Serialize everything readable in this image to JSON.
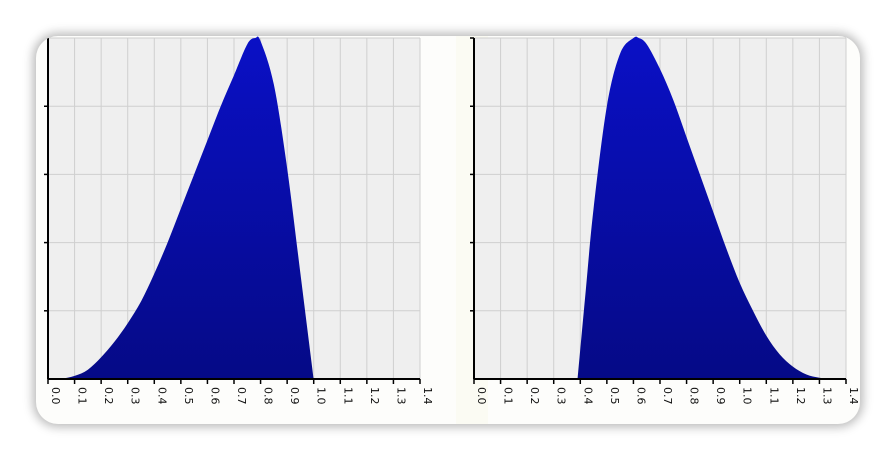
{
  "colors": {
    "fill": "#0a10c6",
    "fill_dark": "#050a86",
    "plot_bg": "#efefef",
    "grid": "#cfcfcf",
    "axis": "#000000"
  },
  "chart_data": [
    {
      "type": "area",
      "title": "",
      "xlabel": "",
      "ylabel": "",
      "xlim": [
        0,
        1.4
      ],
      "ylim": [
        0,
        1.1
      ],
      "grid": true,
      "x_ticks": [
        "0.0",
        "0.1",
        "0.2",
        "0.3",
        "0.4",
        "0.5",
        "0.6",
        "0.7",
        "0.8",
        "0.9",
        "1.0",
        "1.1",
        "1.2",
        "1.3",
        "1.4"
      ],
      "series": [
        {
          "x": [
            0.0,
            0.05,
            0.1,
            0.15,
            0.2,
            0.25,
            0.3,
            0.35,
            0.4,
            0.45,
            0.5,
            0.55,
            0.6,
            0.65,
            0.7,
            0.75,
            0.78,
            0.8,
            0.85,
            0.9,
            0.95,
            1.0
          ],
          "values": [
            0,
            0.001,
            0.01,
            0.03,
            0.07,
            0.12,
            0.18,
            0.25,
            0.34,
            0.44,
            0.55,
            0.66,
            0.77,
            0.88,
            0.98,
            1.08,
            1.1,
            1.09,
            0.95,
            0.68,
            0.34,
            0
          ]
        }
      ]
    },
    {
      "type": "area",
      "title": "",
      "xlabel": "",
      "ylabel": "",
      "xlim": [
        0,
        1.4
      ],
      "ylim": [
        0,
        1.1
      ],
      "grid": true,
      "x_ticks": [
        "0.0",
        "0.1",
        "0.2",
        "0.3",
        "0.4",
        "0.5",
        "0.6",
        "0.7",
        "0.8",
        "0.9",
        "1.0",
        "1.1",
        "1.2",
        "1.3",
        "1.4"
      ],
      "series": [
        {
          "x": [
            0.39,
            0.42,
            0.45,
            0.5,
            0.55,
            0.6,
            0.62,
            0.65,
            0.7,
            0.75,
            0.8,
            0.85,
            0.9,
            0.95,
            1.0,
            1.05,
            1.1,
            1.15,
            1.2,
            1.25,
            1.3,
            1.35
          ],
          "values": [
            0,
            0.28,
            0.55,
            0.88,
            1.05,
            1.1,
            1.1,
            1.08,
            1.0,
            0.9,
            0.78,
            0.66,
            0.54,
            0.42,
            0.31,
            0.22,
            0.14,
            0.08,
            0.04,
            0.015,
            0.004,
            0
          ]
        }
      ]
    }
  ]
}
